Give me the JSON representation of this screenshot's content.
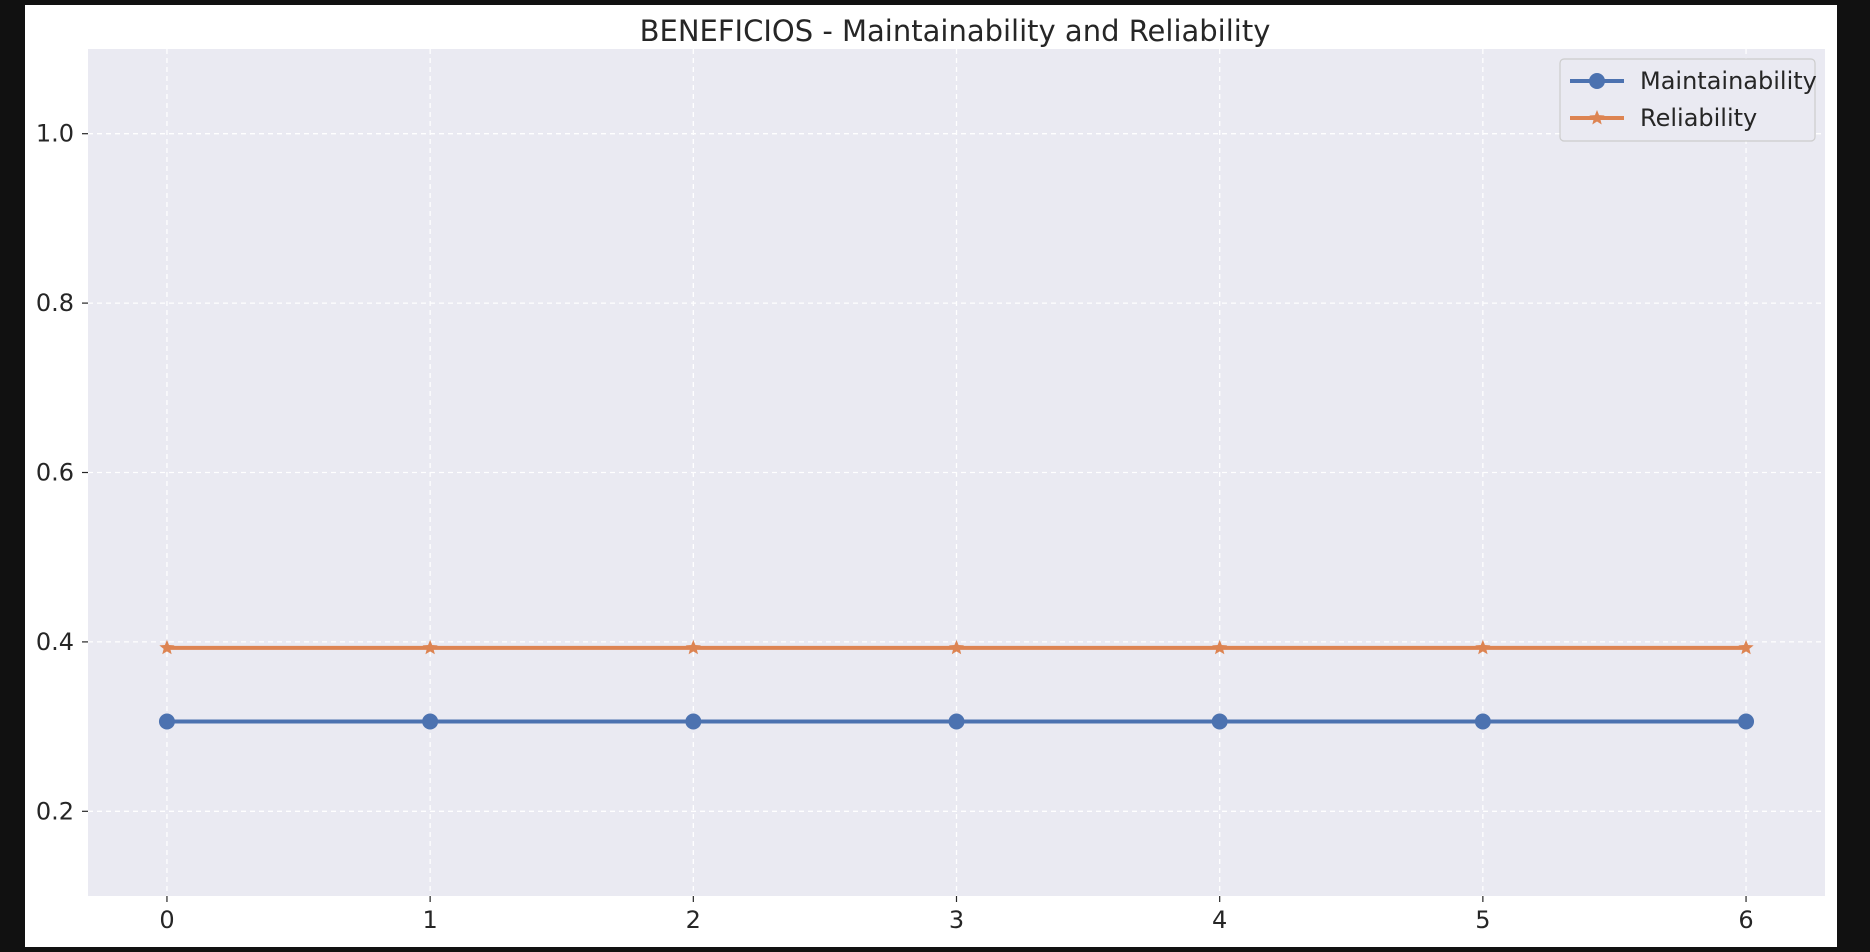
{
  "chart_data": {
    "type": "line",
    "title": "BENEFICIOS - Maintainability and Reliability",
    "xlabel": "",
    "ylabel": "",
    "x": [
      0,
      1,
      2,
      3,
      4,
      5,
      6
    ],
    "xticks": [
      "0",
      "1",
      "2",
      "3",
      "4",
      "5",
      "6"
    ],
    "yticks": [
      "0.2",
      "0.4",
      "0.6",
      "0.8",
      "1.0"
    ],
    "xlim": [
      -0.3,
      6.3
    ],
    "ylim": [
      0.1,
      1.1
    ],
    "grid": true,
    "legend_position": "top-right",
    "series": [
      {
        "name": "Maintainability",
        "values": [
          0.306,
          0.306,
          0.306,
          0.306,
          0.306,
          0.306,
          0.306
        ],
        "color": "#4c72b0",
        "marker": "circle"
      },
      {
        "name": "Reliability",
        "values": [
          0.393,
          0.393,
          0.393,
          0.393,
          0.393,
          0.393,
          0.393
        ],
        "color": "#dd8452",
        "marker": "star"
      }
    ],
    "background_color": "#eaeaf2"
  }
}
